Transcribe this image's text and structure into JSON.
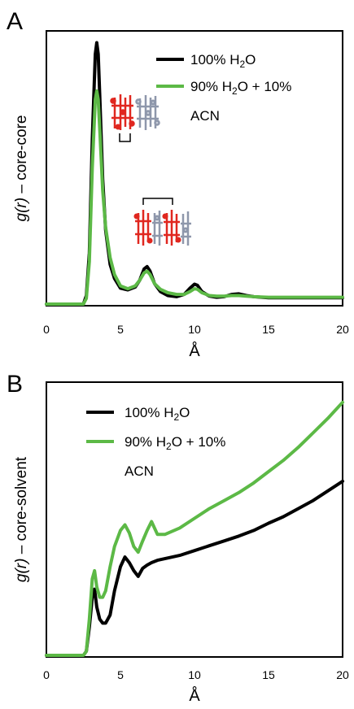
{
  "chart_data": [
    {
      "type": "line",
      "panel_label": "A",
      "ylabel_italic": "g(r)",
      "ylabel_rest": " – core-core",
      "xlabel": "Å",
      "xlim": [
        0,
        20
      ],
      "x_ticks": [
        "0",
        "5",
        "10",
        "15",
        "20"
      ],
      "grid": false,
      "legend_position": "top-right",
      "series": [
        {
          "name": "100% H₂O",
          "name_line1": "100% H2O",
          "name_line2": "",
          "color": "#000000",
          "x": [
            0,
            2.5,
            2.7,
            2.9,
            3.1,
            3.3,
            3.4,
            3.5,
            3.6,
            3.8,
            4.0,
            4.3,
            4.6,
            5.0,
            5.5,
            6.0,
            6.3,
            6.6,
            6.8,
            7.0,
            7.3,
            7.7,
            8.2,
            8.8,
            9.3,
            9.7,
            10.0,
            10.2,
            10.5,
            11.0,
            11.5,
            12.0,
            12.5,
            13.0,
            13.5,
            14.0,
            15.0,
            16.0,
            17.0,
            18.0,
            19.0,
            20.0
          ],
          "y": [
            0,
            0,
            0.15,
            0.9,
            2.9,
            4.4,
            4.6,
            4.4,
            3.7,
            2.2,
            1.3,
            0.7,
            0.45,
            0.28,
            0.25,
            0.3,
            0.42,
            0.62,
            0.66,
            0.58,
            0.36,
            0.22,
            0.15,
            0.13,
            0.17,
            0.28,
            0.35,
            0.33,
            0.22,
            0.14,
            0.12,
            0.13,
            0.17,
            0.18,
            0.15,
            0.13,
            0.11,
            0.11,
            0.11,
            0.11,
            0.11,
            0.11
          ]
        },
        {
          "name": "90% H₂O + 10% ACN",
          "name_line1": "90% H2O + 10%",
          "name_line2": "ACN",
          "color": "#5cb946",
          "x": [
            0,
            2.5,
            2.7,
            2.9,
            3.1,
            3.3,
            3.4,
            3.5,
            3.6,
            3.8,
            4.0,
            4.3,
            4.6,
            5.0,
            5.5,
            6.0,
            6.3,
            6.6,
            6.8,
            7.0,
            7.3,
            7.7,
            8.2,
            8.8,
            9.3,
            9.7,
            10.0,
            10.2,
            10.5,
            11.0,
            11.5,
            12.0,
            12.5,
            13.0,
            13.5,
            14.0,
            15.0,
            16.0,
            17.0,
            18.0,
            19.0,
            20.0
          ],
          "y": [
            0,
            0,
            0.1,
            0.75,
            2.4,
            3.6,
            3.75,
            3.6,
            3.1,
            2.0,
            1.35,
            0.82,
            0.52,
            0.32,
            0.27,
            0.32,
            0.42,
            0.55,
            0.58,
            0.52,
            0.36,
            0.26,
            0.2,
            0.17,
            0.17,
            0.22,
            0.27,
            0.26,
            0.2,
            0.15,
            0.14,
            0.14,
            0.15,
            0.15,
            0.14,
            0.13,
            0.12,
            0.12,
            0.12,
            0.12,
            0.12,
            0.12
          ]
        }
      ]
    },
    {
      "type": "line",
      "panel_label": "B",
      "ylabel_italic": "g(r)",
      "ylabel_rest": " – core-solvent",
      "xlabel": "Å",
      "xlim": [
        0,
        20
      ],
      "x_ticks": [
        "0",
        "5",
        "10",
        "15",
        "20"
      ],
      "grid": false,
      "legend_position": "top-left",
      "series": [
        {
          "name": "100% H₂O",
          "name_line1": "100% H2O",
          "name_line2": "",
          "color": "#000000",
          "x": [
            0,
            2.5,
            2.7,
            2.9,
            3.1,
            3.25,
            3.4,
            3.6,
            3.8,
            4.0,
            4.3,
            4.6,
            5.0,
            5.3,
            5.6,
            5.9,
            6.2,
            6.5,
            6.8,
            7.1,
            7.5,
            8.0,
            9.0,
            10.0,
            11.0,
            12.0,
            13.0,
            14.0,
            15.0,
            16.0,
            17.0,
            18.0,
            19.0,
            20.0
          ],
          "y": [
            0,
            0,
            0.05,
            0.35,
            0.72,
            0.82,
            0.6,
            0.45,
            0.4,
            0.4,
            0.5,
            0.8,
            1.1,
            1.22,
            1.15,
            1.05,
            0.98,
            1.08,
            1.12,
            1.15,
            1.18,
            1.2,
            1.24,
            1.3,
            1.36,
            1.42,
            1.48,
            1.55,
            1.64,
            1.72,
            1.82,
            1.92,
            2.04,
            2.16
          ]
        },
        {
          "name": "90% H₂O + 10% ACN",
          "name_line1": "90% H2O + 10%",
          "name_line2": "ACN",
          "color": "#5cb946",
          "x": [
            0,
            2.5,
            2.7,
            2.9,
            3.1,
            3.25,
            3.4,
            3.6,
            3.8,
            4.0,
            4.3,
            4.6,
            5.0,
            5.3,
            5.6,
            5.9,
            6.2,
            6.5,
            6.8,
            7.1,
            7.5,
            8.0,
            9.0,
            10.0,
            11.0,
            12.0,
            13.0,
            14.0,
            15.0,
            16.0,
            17.0,
            18.0,
            19.0,
            20.0
          ],
          "y": [
            0,
            0,
            0.05,
            0.45,
            0.95,
            1.05,
            0.85,
            0.72,
            0.72,
            0.8,
            1.1,
            1.35,
            1.55,
            1.62,
            1.52,
            1.35,
            1.28,
            1.42,
            1.55,
            1.66,
            1.5,
            1.5,
            1.58,
            1.7,
            1.82,
            1.92,
            2.02,
            2.14,
            2.28,
            2.42,
            2.58,
            2.76,
            2.94,
            3.14
          ]
        }
      ]
    }
  ]
}
